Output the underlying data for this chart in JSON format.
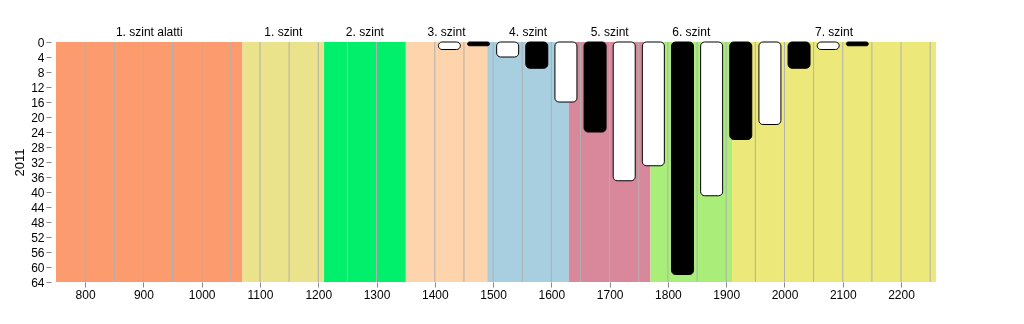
{
  "chart_data": {
    "type": "bar",
    "ylabel": "2011",
    "x": [
      1425,
      1475,
      1525,
      1575,
      1625,
      1675,
      1725,
      1775,
      1825,
      1875,
      1925,
      1975,
      2025,
      2075,
      2125
    ],
    "values": [
      2,
      1,
      4,
      7,
      16,
      24,
      37,
      33,
      62,
      41,
      26,
      22,
      7,
      2,
      1
    ],
    "colors": [
      "#ffffff",
      "#000000",
      "#ffffff",
      "#000000",
      "#ffffff",
      "#000000",
      "#ffffff",
      "#ffffff",
      "#000000",
      "#ffffff",
      "#000000",
      "#ffffff",
      "#000000",
      "#ffffff",
      "#000000"
    ],
    "xlim": [
      750,
      2260
    ],
    "xticks": [
      800,
      {
        "value": 850,
        "label": null
      },
      900,
      {
        "value": 950,
        "label": null
      },
      1000,
      {
        "value": 1050,
        "label": null
      },
      1100,
      {
        "value": 1150,
        "label": null
      },
      1200,
      {
        "value": 1250,
        "label": null
      },
      1300,
      {
        "value": 1350,
        "label": null
      },
      1400,
      {
        "value": 1450,
        "label": null
      },
      1500,
      {
        "value": 1550,
        "label": null
      },
      1600,
      {
        "value": 1650,
        "label": null
      },
      1700,
      {
        "value": 1750,
        "label": null
      },
      1800,
      {
        "value": 1850,
        "label": null
      },
      1900,
      {
        "value": 1950,
        "label": null
      },
      2000,
      {
        "value": 2050,
        "label": null
      },
      2100,
      {
        "value": 2150,
        "label": null
      },
      2200,
      {
        "value": 2250,
        "label": null
      }
    ],
    "ylim": [
      64,
      0
    ],
    "yticks": [
      0,
      4,
      8,
      12,
      16,
      20,
      24,
      28,
      32,
      36,
      40,
      44,
      48,
      52,
      56,
      60,
      64
    ],
    "grid": "x",
    "bands": [
      {
        "axis": "x",
        "from": 750,
        "to": 1070,
        "label": "1. szint alatti",
        "color": "#fb9b6e"
      },
      {
        "axis": "x",
        "from": 1070,
        "to": 1210,
        "label": "1. szint",
        "color": "#ebe38b"
      },
      {
        "axis": "x",
        "from": 1210,
        "to": 1350,
        "label": "2. szint",
        "color": "#00f06c"
      },
      {
        "axis": "x",
        "from": 1350,
        "to": 1490,
        "label": "3. szint",
        "color": "#fdd4ac"
      },
      {
        "axis": "x",
        "from": 1490,
        "to": 1630,
        "label": "4. szint",
        "color": "#a7cfe0"
      },
      {
        "axis": "x",
        "from": 1630,
        "to": 1770,
        "label": "5. szint",
        "color": "#d9889b"
      },
      {
        "axis": "x",
        "from": 1770,
        "to": 1910,
        "label": "6. szint",
        "color": "#a9ee78"
      },
      {
        "axis": "x",
        "from": 1910,
        "to": 2260,
        "label": "7. szint",
        "color": "#ece97a"
      }
    ]
  }
}
